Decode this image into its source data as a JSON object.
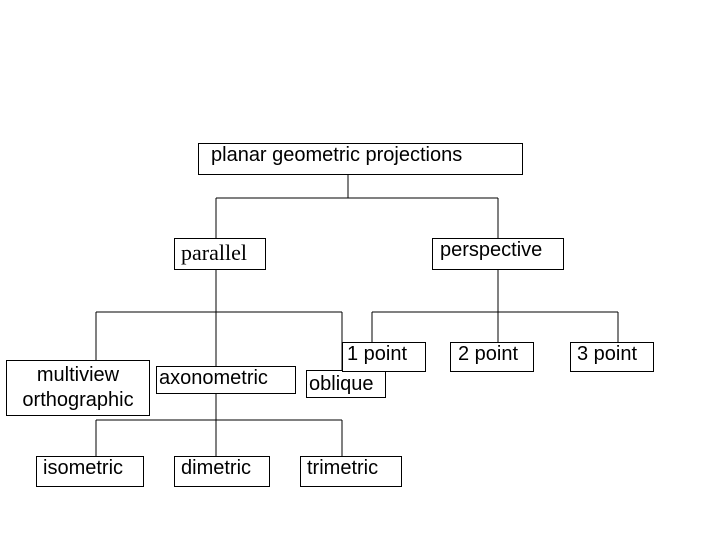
{
  "diagram": {
    "root": "planar geometric projections",
    "parallel": "parallel",
    "perspective": "perspective",
    "multiview_line1": "multiview",
    "multiview_line2": "orthographic",
    "axonometric": "axonometric",
    "oblique": "oblique",
    "one_point": "1 point",
    "two_point": "2 point",
    "three_point": "3 point",
    "isometric": "isometric",
    "dimetric": "dimetric",
    "trimetric": "trimetric"
  }
}
